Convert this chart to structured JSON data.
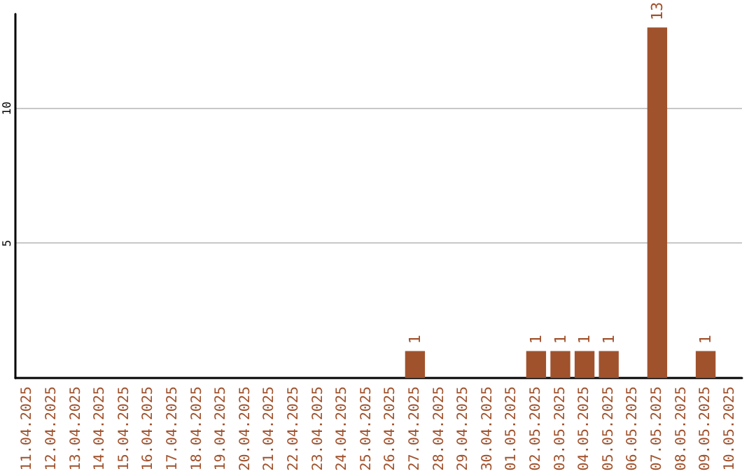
{
  "chart_data": {
    "type": "bar",
    "categories": [
      "11.04.2025",
      "12.04.2025",
      "13.04.2025",
      "14.04.2025",
      "15.04.2025",
      "16.04.2025",
      "17.04.2025",
      "18.04.2025",
      "19.04.2025",
      "20.04.2025",
      "21.04.2025",
      "22.04.2025",
      "23.04.2025",
      "24.04.2025",
      "25.04.2025",
      "26.04.2025",
      "27.04.2025",
      "28.04.2025",
      "29.04.2025",
      "30.04.2025",
      "01.05.2025",
      "02.05.2025",
      "03.05.2025",
      "04.05.2025",
      "05.05.2025",
      "06.05.2025",
      "07.05.2025",
      "08.05.2025",
      "09.05.2025",
      "10.05.2025"
    ],
    "values": [
      0,
      0,
      0,
      0,
      0,
      0,
      0,
      0,
      0,
      0,
      0,
      0,
      0,
      0,
      0,
      0,
      1,
      0,
      0,
      0,
      0,
      1,
      1,
      1,
      1,
      0,
      13,
      0,
      1,
      0
    ],
    "value_labels": [
      null,
      null,
      null,
      null,
      null,
      null,
      null,
      null,
      null,
      null,
      null,
      null,
      null,
      null,
      null,
      null,
      "1",
      null,
      null,
      null,
      null,
      "1",
      "1",
      "1",
      "1",
      null,
      "13",
      null,
      "1",
      null
    ],
    "color": "#a0522d",
    "ylim": [
      0,
      13.5
    ],
    "yticks": [
      5,
      10
    ],
    "grid": "y"
  }
}
